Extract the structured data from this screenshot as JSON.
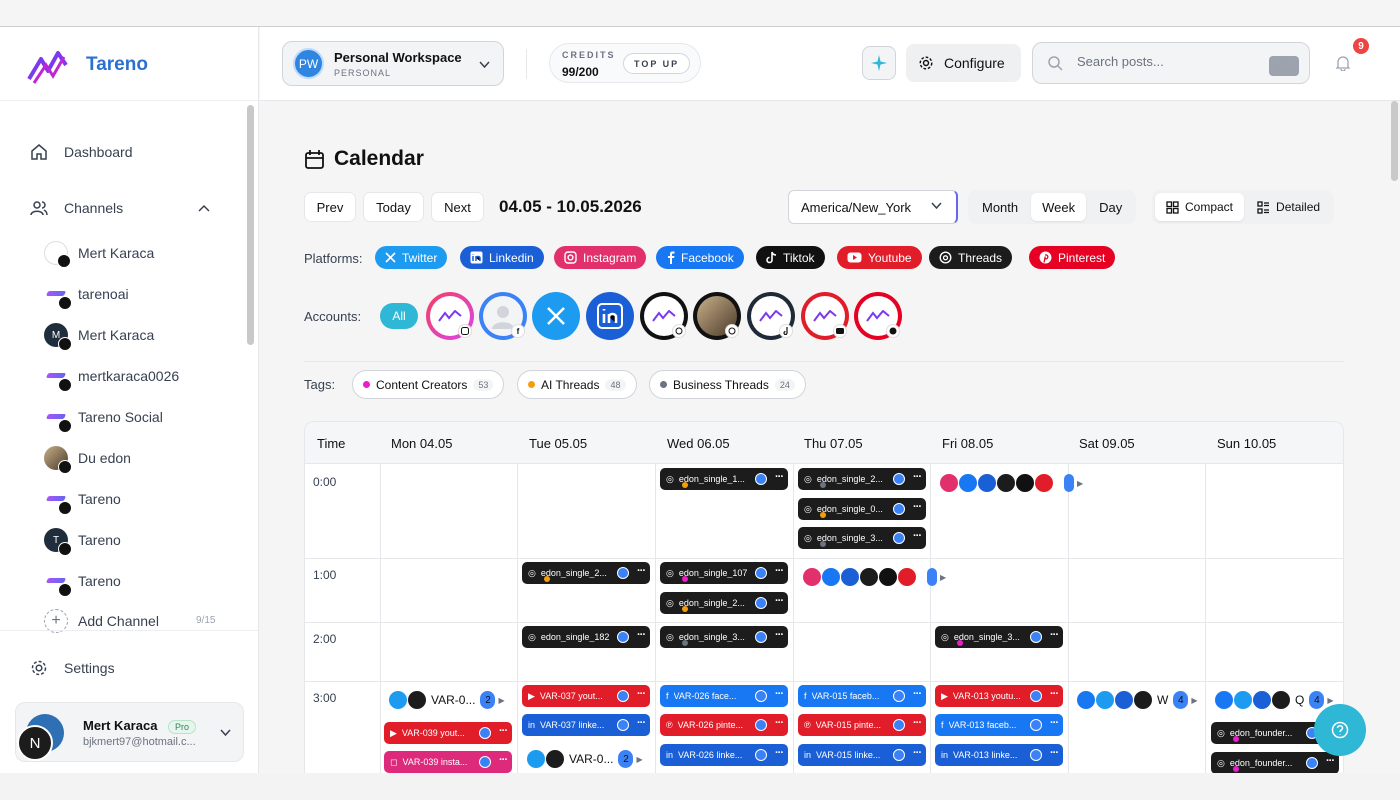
{
  "app": {
    "name": "Tareno"
  },
  "sidebar": {
    "nav": [
      {
        "label": "Dashboard"
      },
      {
        "label": "Channels"
      }
    ],
    "channels": [
      {
        "name": "Mert Karaca",
        "platform": "facebook"
      },
      {
        "name": "tarenoai",
        "platform": "instagram"
      },
      {
        "name": "Mert Karaca",
        "platform": "linkedin"
      },
      {
        "name": "mertkaraca0026",
        "platform": "pinterest"
      },
      {
        "name": "Tareno Social",
        "platform": "threads"
      },
      {
        "name": "Du edon",
        "platform": "threads"
      },
      {
        "name": "Tareno",
        "platform": "tiktok"
      },
      {
        "name": "Tareno",
        "platform": "twitter"
      },
      {
        "name": "Tareno",
        "platform": "youtube"
      }
    ],
    "add_channel": {
      "label": "Add Channel",
      "count": "9/15"
    },
    "settings": "Settings",
    "user": {
      "name": "Mert Karaca",
      "plan": "Pro",
      "email": "bjkmert97@hotmail.c...",
      "avatar_letter": "N"
    }
  },
  "header": {
    "workspace": {
      "initials": "PW",
      "name": "Personal Workspace",
      "type": "PERSONAL"
    },
    "credits": {
      "label": "CREDITS",
      "value": "99/200",
      "topup": "TOP UP"
    },
    "configure": "Configure",
    "search_placeholder": "Search posts...",
    "notifications": "9"
  },
  "calendar": {
    "title": "Calendar",
    "prev": "Prev",
    "today": "Today",
    "next": "Next",
    "range": "04.05 - 10.05.2026",
    "timezone": "America/New_York",
    "views": [
      "Month",
      "Week",
      "Day"
    ],
    "active_view": "Week",
    "modes": [
      "Compact",
      "Detailed"
    ],
    "active_mode": "Compact",
    "platforms_label": "Platforms:",
    "platforms": [
      {
        "name": "Twitter",
        "color": "#1d9bf0"
      },
      {
        "name": "Linkedin",
        "color": "#1b5fd6"
      },
      {
        "name": "Instagram",
        "color": "#e1306c"
      },
      {
        "name": "Facebook",
        "color": "#1877f2"
      },
      {
        "name": "Tiktok",
        "color": "#111111"
      },
      {
        "name": "Youtube",
        "color": "#e11d2a"
      },
      {
        "name": "Threads",
        "color": "#1c1c1c"
      },
      {
        "name": "Pinterest",
        "color": "#e60023"
      }
    ],
    "accounts_label": "Accounts:",
    "accounts_all": "All",
    "tags_label": "Tags:",
    "tags": [
      {
        "name": "Content Creators",
        "count": "53",
        "color": "#e91ecb"
      },
      {
        "name": "AI Threads",
        "count": "48",
        "color": "#f59e0b"
      },
      {
        "name": "Business Threads",
        "count": "24",
        "color": "#6b7280"
      }
    ],
    "columns": [
      "Time",
      "Mon 04.05",
      "Tue 05.05",
      "Wed 06.05",
      "Thu 07.05",
      "Fri 08.05",
      "Sat 09.05",
      "Sun 10.05"
    ],
    "rows": [
      "0:00",
      "1:00",
      "2:00",
      "3:00"
    ],
    "events": {
      "wed_0_1": "edon_single_1...",
      "thu_0_1": "edon_single_2...",
      "thu_0_2": "edon_single_0...",
      "thu_0_3": "edon_single_3...",
      "tue_1_1": "edon_single_2...",
      "wed_1_1": "edon_single_107",
      "wed_1_2": "edon_single_2...",
      "tue_2_1": "edon_single_182",
      "wed_2_1": "edon_single_3...",
      "fri_2_1": "edon_single_3...",
      "mon_3_g": "VAR-0...",
      "mon_3_g_count": "2",
      "mon_3_1": "VAR-039 yout...",
      "mon_3_2": "VAR-039 insta...",
      "tue_3_1": "VAR-037 yout...",
      "tue_3_2": "VAR-037 linke...",
      "tue_3_g": "VAR-0...",
      "tue_3_g_count": "2",
      "wed_3_1": "VAR-026 face...",
      "wed_3_2": "VAR-026 pinte...",
      "wed_3_3": "VAR-026 linke...",
      "thu_3_1": "VAR-015 faceb...",
      "thu_3_2": "VAR-015 pinte...",
      "thu_3_3": "VAR-015 linke...",
      "fri_3_1": "VAR-013 youtu...",
      "fri_3_2": "VAR-013 faceb...",
      "fri_3_3": "VAR-013 linke...",
      "sat_3_g": "W",
      "sat_3_g_count": "4",
      "sun_3_g": "Q",
      "sun_3_g_count": "4",
      "sun_3_1": "edon_founder...",
      "sun_3_2": "edon_founder..."
    }
  }
}
